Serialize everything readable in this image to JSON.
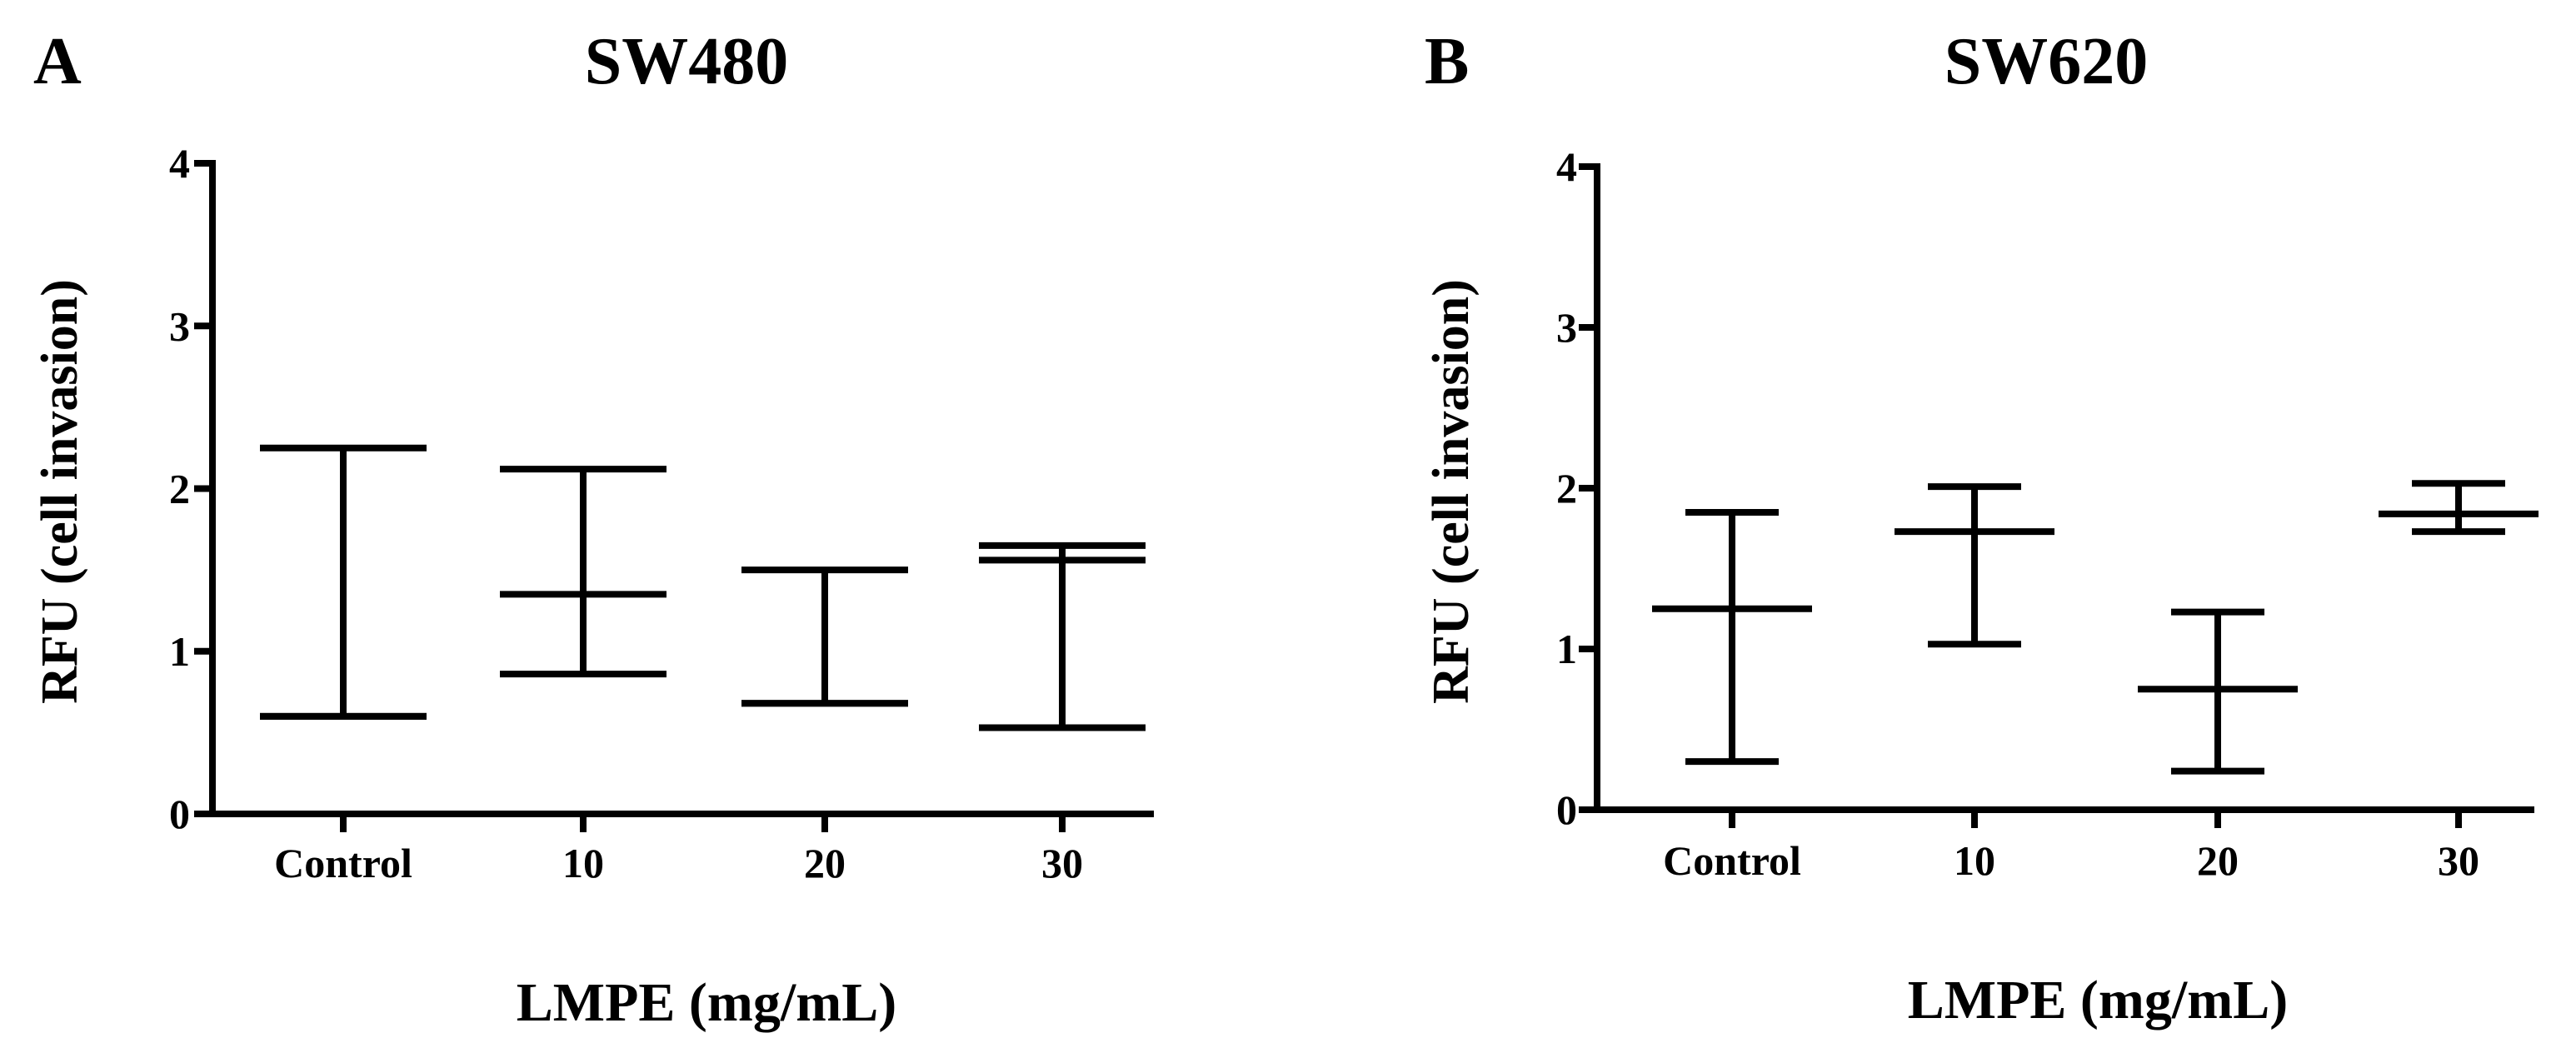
{
  "chart_data": [
    {
      "type": "scatter",
      "panel_label": "A",
      "title": "SW480",
      "xlabel": "LMPE (mg/mL)",
      "ylabel": "RFU (cell invasion)",
      "categories": [
        "Control",
        "10",
        "20",
        "30"
      ],
      "ylim": [
        0,
        4
      ],
      "yticks": [
        "0",
        "1",
        "2",
        "3",
        "4"
      ],
      "series": [
        {
          "name": "RFU",
          "mean": [
            0.6,
            1.35,
            0.68,
            1.56
          ],
          "upper": [
            2.25,
            2.12,
            1.5,
            1.65
          ],
          "lower": [
            0.6,
            0.86,
            0.68,
            0.53
          ]
        }
      ]
    },
    {
      "type": "scatter",
      "panel_label": "B",
      "title": "SW620",
      "xlabel": "LMPE (mg/mL)",
      "ylabel": "RFU (cell invasion)",
      "categories": [
        "Control",
        "10",
        "20",
        "30"
      ],
      "ylim": [
        0,
        4
      ],
      "yticks": [
        "0",
        "1",
        "2",
        "3",
        "4"
      ],
      "series": [
        {
          "name": "RFU",
          "mean": [
            1.25,
            1.73,
            0.75,
            1.84
          ],
          "upper": [
            1.85,
            2.01,
            1.23,
            2.03
          ],
          "lower": [
            0.3,
            1.03,
            0.24,
            1.73
          ]
        }
      ]
    }
  ]
}
